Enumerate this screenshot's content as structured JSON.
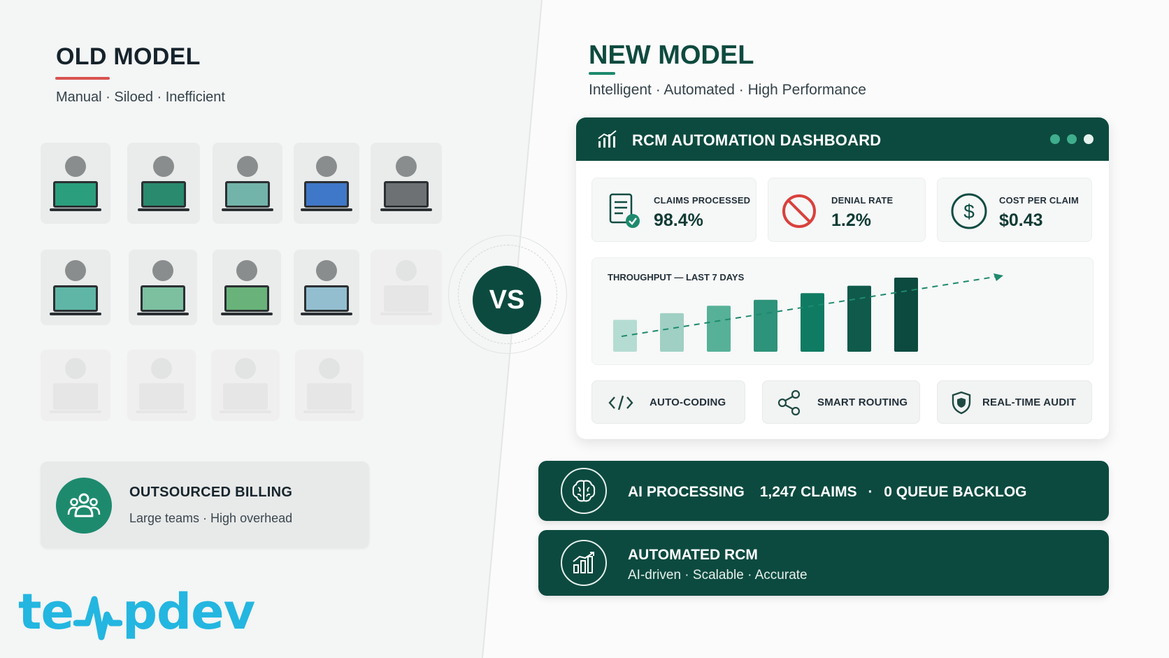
{
  "old_model": {
    "title": "OLD MODEL",
    "subtitle": "Manual · Siloed · Inefficient",
    "workstation_screen_colors": [
      "#2a9e7d",
      "#2a8a6e",
      "#73b4aa",
      "#3f78c8",
      "#6d7173",
      "#5fb6a6",
      "#7cc0a0",
      "#69b27a",
      "#93bed0"
    ],
    "outsourced": {
      "title": "OUTSOURCED BILLING",
      "subtitle": "Large teams · High overhead",
      "icon": "users-group-icon"
    }
  },
  "vs_label": "VS",
  "new_model": {
    "title": "NEW MODEL",
    "subtitle": "Intelligent · Automated · High Performance"
  },
  "dashboard": {
    "title": "RCM AUTOMATION DASHBOARD",
    "title_icon": "bar-chart-icon",
    "metrics": [
      {
        "label": "CLAIMS PROCESSED",
        "value": "98.4%",
        "icon": "document-check-icon"
      },
      {
        "label": "DENIAL RATE",
        "value": "1.2%",
        "icon": "prohibited-icon"
      },
      {
        "label": "COST PER CLAIM",
        "value": "$0.43",
        "icon": "dollar-circle-icon"
      }
    ],
    "throughput": {
      "label": "THROUGHPUT — LAST 7 DAYS",
      "bar_levels": [
        0.43,
        0.52,
        0.62,
        0.7,
        0.79,
        0.89,
        1.0
      ],
      "bar_colors": [
        "#b5dcd2",
        "#9fd0c3",
        "#56b198",
        "#2d937a",
        "#0f7b63",
        "#0f5a4b",
        "#0c4a3f"
      ]
    },
    "features": [
      {
        "label": "AUTO-CODING",
        "icon": "code-icon"
      },
      {
        "label": "SMART ROUTING",
        "icon": "share-nodes-icon"
      },
      {
        "label": "REAL-TIME AUDIT",
        "icon": "shield-icon"
      }
    ]
  },
  "ai_bar": {
    "title": "AI PROCESSING",
    "claims": "1,247 CLAIMS",
    "separator": "·",
    "backlog": "0 QUEUE BACKLOG",
    "icon": "brain-icon"
  },
  "rcm_bar": {
    "title": "AUTOMATED RCM",
    "subtitle": "AI-driven · Scalable · Accurate",
    "icon": "growth-chart-icon"
  },
  "brand": {
    "logo_text_start": "te",
    "logo_text_end": "pdev",
    "accent": "#23b6e0"
  },
  "colors": {
    "primary": "#0c4a3f",
    "accent_green": "#1e8a6d",
    "old_accent": "#d9524f"
  }
}
